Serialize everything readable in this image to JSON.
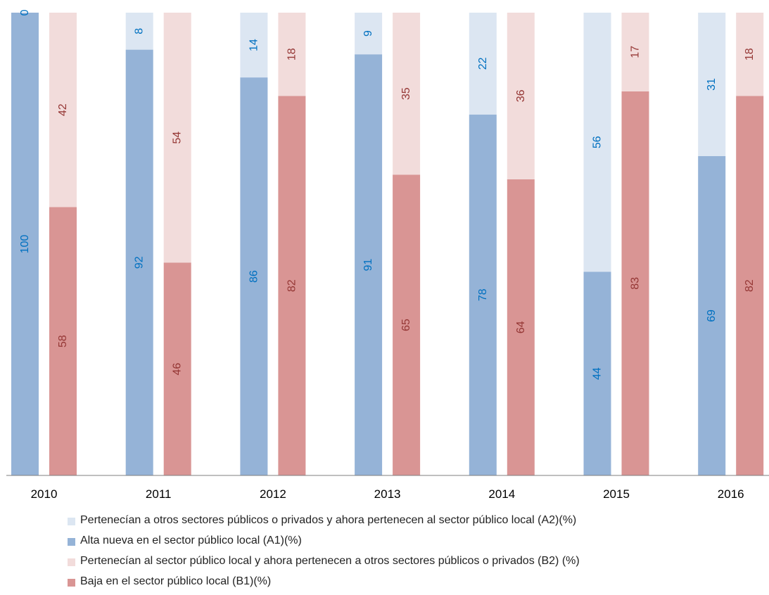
{
  "chart_data": {
    "type": "bar",
    "stacked": true,
    "categories": [
      "2010",
      "2011",
      "2012",
      "2013",
      "2014",
      "2015",
      "2016"
    ],
    "ylim": [
      0,
      100
    ],
    "grid": false,
    "legend_position": "bottom",
    "stacks": [
      {
        "name": "A",
        "series": [
          {
            "name": "Alta nueva en el sector público local (A1)(%)",
            "color": "#95B3D7",
            "label_color": "#0070C0",
            "values": [
              100,
              92,
              86,
              91,
              78,
              44,
              69
            ]
          },
          {
            "name": "Pertenecían a otros sectores públicos o privados y ahora pertenecen al sector público local (A2)(%)",
            "color": "#DCE6F2",
            "label_color": "#0070C0",
            "values": [
              0,
              8,
              14,
              9,
              22,
              56,
              31
            ]
          }
        ]
      },
      {
        "name": "B",
        "series": [
          {
            "name": "Baja en el sector público local (B1)(%)",
            "color": "#D99594",
            "label_color": "#953735",
            "values": [
              58,
              46,
              82,
              65,
              64,
              83,
              82
            ]
          },
          {
            "name": "Pertenecían al sector público local y ahora pertenecen a otros sectores públicos o privados (B2) (%)",
            "color": "#F2DCDB",
            "label_color": "#953735",
            "values": [
              42,
              54,
              18,
              35,
              36,
              17,
              18
            ]
          }
        ]
      }
    ],
    "data_labels": {
      "A1": [
        "100",
        "92",
        "86",
        "91",
        "78",
        "44",
        "69"
      ],
      "A2": [
        "0",
        "8",
        "14",
        "9",
        "22",
        "56",
        "31"
      ],
      "B1": [
        "58",
        "46",
        "82",
        "65",
        "64",
        "83",
        "82"
      ],
      "B2": [
        "42",
        "54",
        "18",
        "35",
        "36",
        "17",
        "18"
      ]
    }
  },
  "legend": [
    {
      "label": "Pertenecían a otros sectores públicos o privados y ahora pertenecen al sector público local (A2)(%)",
      "color": "#DCE6F2"
    },
    {
      "label": "Alta nueva en el sector público local (A1)(%)",
      "color": "#95B3D7"
    },
    {
      "label": "Pertenecían al sector público local y ahora pertenecen a otros sectores públicos o privados (B2) (%)",
      "color": "#F2DCDB"
    },
    {
      "label": "Baja en el sector público local (B1)(%)",
      "color": "#D99594"
    }
  ]
}
